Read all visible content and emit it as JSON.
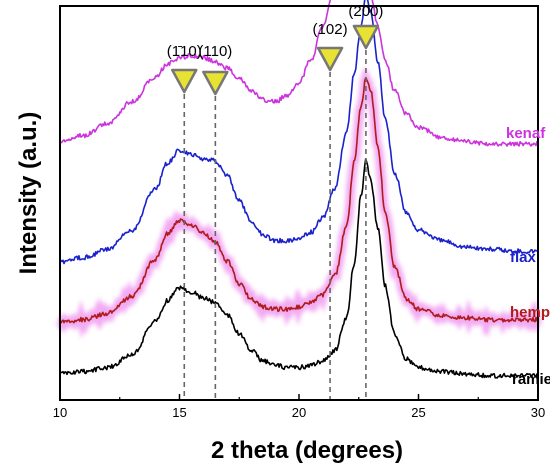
{
  "chart_data": {
    "type": "line",
    "title": "",
    "xlabel": "2 theta (degrees)",
    "ylabel": "Intensity (a.u.)",
    "xlim": [
      10,
      30
    ],
    "xticks": [
      10,
      15,
      20,
      25,
      30
    ],
    "y_ticks_labeled": false,
    "grid": false,
    "legend": "inline labels at right end of each curve",
    "reference_lines": [
      {
        "x": 15.2,
        "label": "(1̄10)",
        "style": "dashed"
      },
      {
        "x": 16.5,
        "label": "(110)",
        "style": "dashed"
      },
      {
        "x": 21.3,
        "label": "(102)",
        "style": "dashed"
      },
      {
        "x": 22.8,
        "label": "(200)",
        "style": "dashed"
      }
    ],
    "marker_color": "#e8e233",
    "x": [
      10,
      11,
      12,
      13,
      14,
      14.5,
      15,
      15.5,
      16,
      16.5,
      17,
      17.5,
      18,
      18.5,
      19,
      19.5,
      20,
      20.5,
      21,
      21.5,
      22,
      22.3,
      22.6,
      22.8,
      23,
      23.3,
      23.6,
      24,
      24.5,
      25,
      26,
      27,
      28,
      29,
      30
    ],
    "series": [
      {
        "name": "ramie",
        "color": "#000000",
        "values": [
          0.03,
          0.04,
          0.06,
          0.12,
          0.28,
          0.38,
          0.44,
          0.42,
          0.39,
          0.37,
          0.31,
          0.22,
          0.14,
          0.09,
          0.07,
          0.06,
          0.06,
          0.07,
          0.09,
          0.14,
          0.3,
          0.55,
          0.88,
          1.05,
          0.95,
          0.72,
          0.45,
          0.22,
          0.1,
          0.06,
          0.04,
          0.03,
          0.02,
          0.02,
          0.02
        ]
      },
      {
        "name": "hemp",
        "color": "#b01b1b",
        "halo": "#ee8fee",
        "values": [
          0.02,
          0.03,
          0.06,
          0.14,
          0.32,
          0.44,
          0.5,
          0.48,
          0.44,
          0.4,
          0.31,
          0.2,
          0.13,
          0.09,
          0.08,
          0.08,
          0.09,
          0.11,
          0.15,
          0.24,
          0.48,
          0.78,
          1.05,
          1.18,
          1.12,
          0.85,
          0.55,
          0.28,
          0.13,
          0.08,
          0.05,
          0.04,
          0.03,
          0.03,
          0.03
        ]
      },
      {
        "name": "flax",
        "color": "#1a22cc",
        "values": [
          0.03,
          0.05,
          0.09,
          0.18,
          0.38,
          0.5,
          0.56,
          0.54,
          0.52,
          0.51,
          0.44,
          0.32,
          0.22,
          0.16,
          0.13,
          0.13,
          0.14,
          0.17,
          0.24,
          0.38,
          0.65,
          0.92,
          1.15,
          1.3,
          1.22,
          0.98,
          0.72,
          0.45,
          0.26,
          0.18,
          0.13,
          0.1,
          0.09,
          0.08,
          0.08
        ]
      },
      {
        "name": "kenaf",
        "color": "#cc33dd",
        "values": [
          0.03,
          0.06,
          0.12,
          0.22,
          0.34,
          0.4,
          0.43,
          0.44,
          0.43,
          0.41,
          0.38,
          0.33,
          0.27,
          0.23,
          0.22,
          0.25,
          0.31,
          0.42,
          0.58,
          0.76,
          0.88,
          0.9,
          0.87,
          0.8,
          0.72,
          0.58,
          0.42,
          0.27,
          0.16,
          0.1,
          0.05,
          0.03,
          0.02,
          0.02,
          0.02
        ]
      }
    ]
  }
}
